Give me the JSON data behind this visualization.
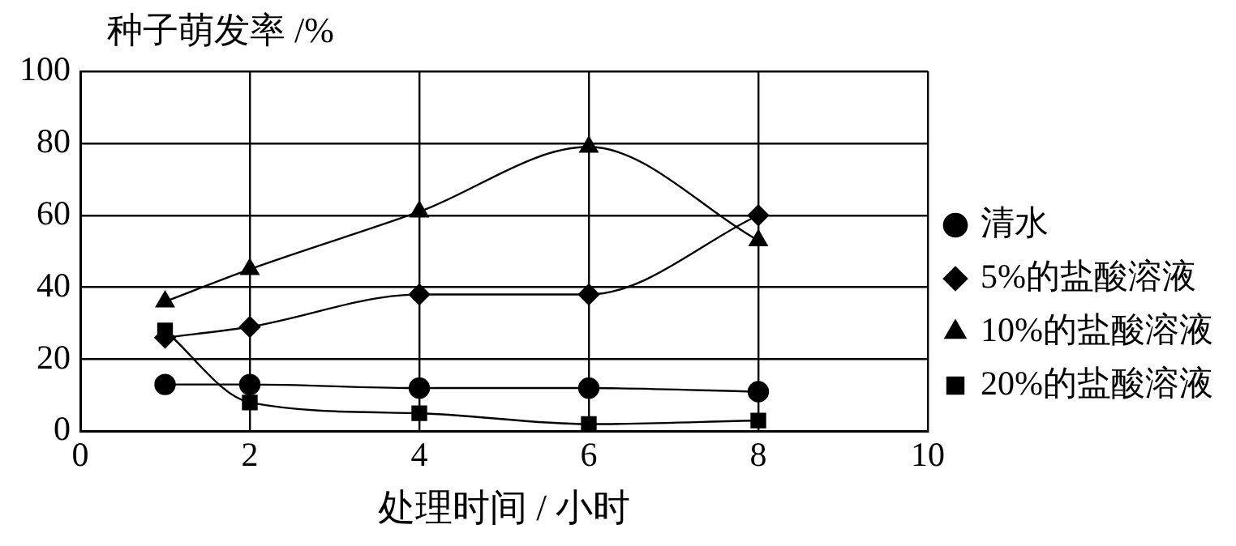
{
  "chart_data": {
    "type": "line",
    "ylabel": "种子萌发率 /%",
    "xlabel": "处理时间 / 小时",
    "xlim": [
      0,
      10
    ],
    "xticks": [
      0,
      2,
      4,
      6,
      8,
      10
    ],
    "ylim": [
      0,
      100
    ],
    "yticks": [
      0,
      20,
      40,
      60,
      80,
      100
    ],
    "grid": true,
    "legend": "right",
    "line_style": "solid",
    "series": [
      {
        "name": "清水",
        "color": "#000000",
        "marker": "circle",
        "x": [
          1,
          2,
          4,
          6,
          8
        ],
        "values": [
          13,
          13,
          12,
          12,
          11
        ]
      },
      {
        "name": "5%的盐酸溶液",
        "color": "#000000",
        "marker": "diamond",
        "x": [
          1,
          2,
          4,
          6,
          8
        ],
        "values": [
          26,
          29,
          38,
          38,
          60
        ]
      },
      {
        "name": "10%的盐酸溶液",
        "color": "#000000",
        "marker": "triangle",
        "x": [
          1,
          2,
          4,
          6,
          8
        ],
        "values": [
          36,
          45,
          61,
          79,
          53
        ]
      },
      {
        "name": "20%的盐酸溶液",
        "color": "#000000",
        "marker": "square",
        "x": [
          1,
          2,
          4,
          6,
          8
        ],
        "values": [
          28,
          8,
          5,
          2,
          3
        ]
      }
    ]
  }
}
